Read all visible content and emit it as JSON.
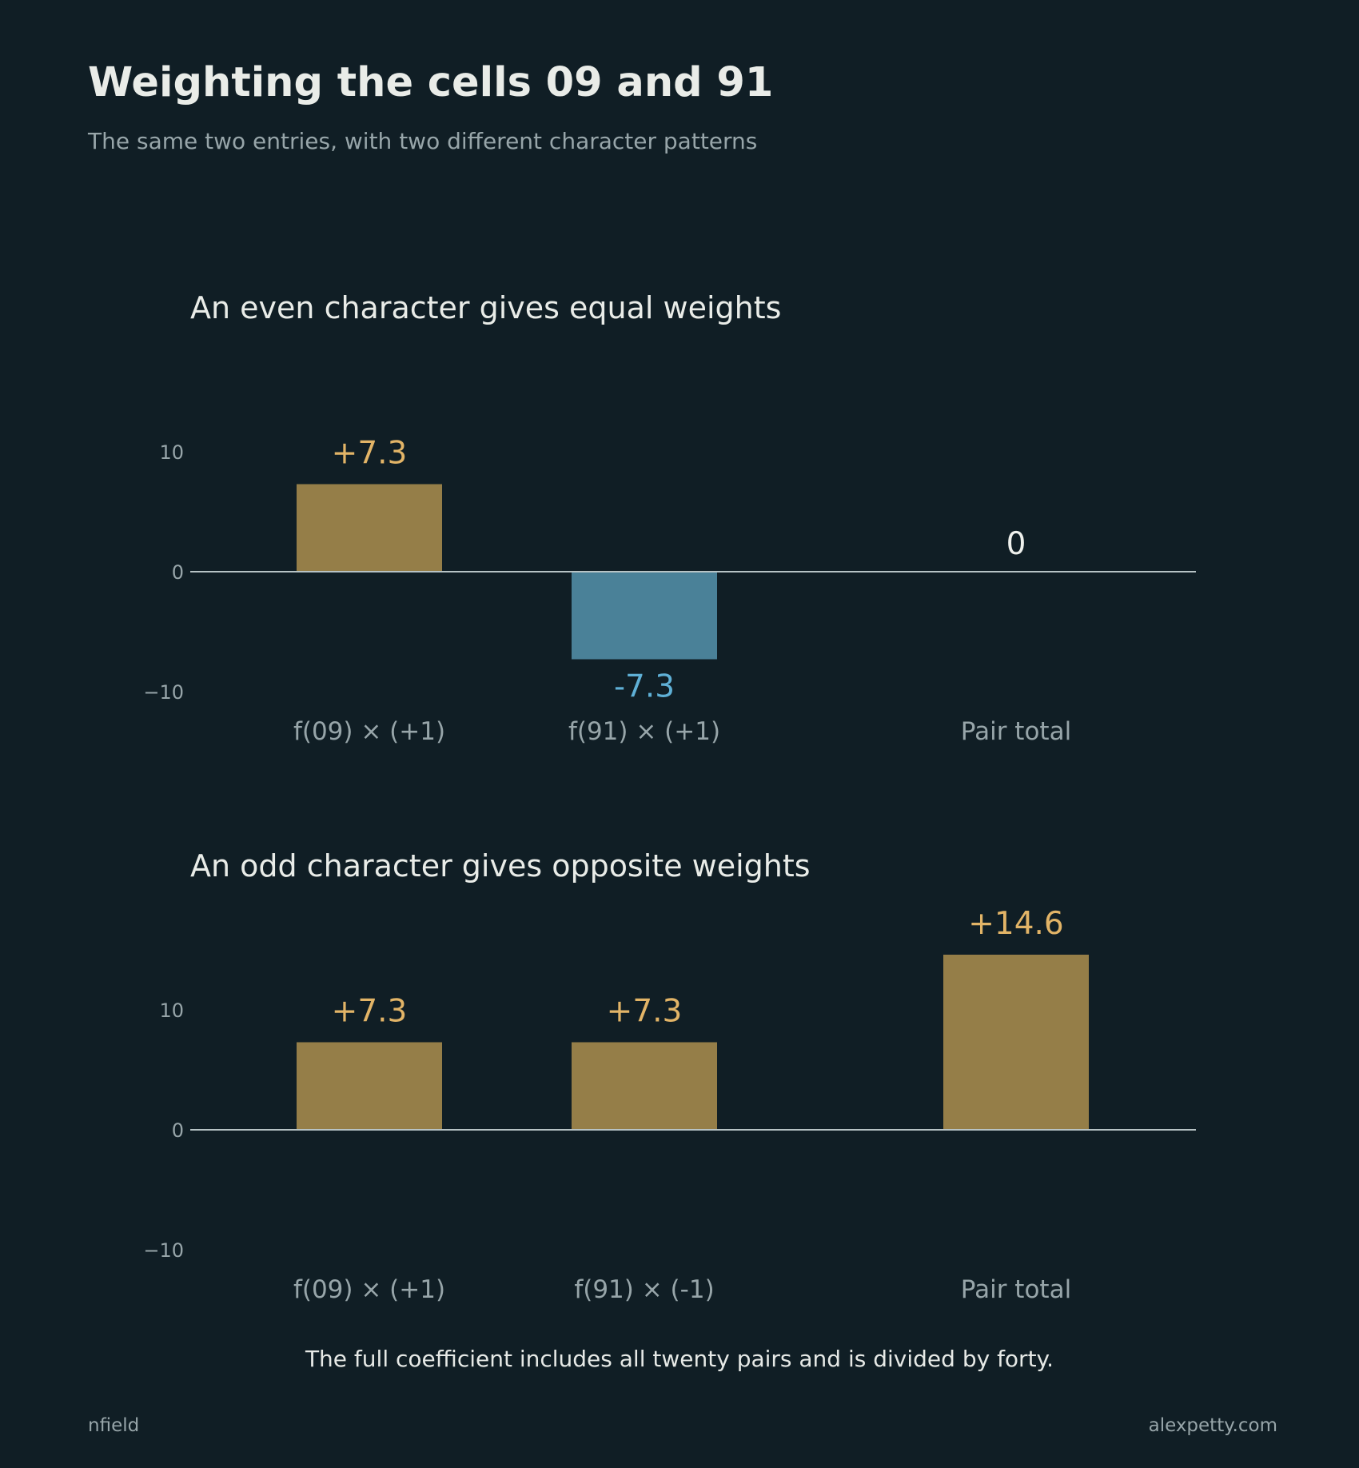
{
  "header": {
    "title": "Weighting the cells 09 and 91",
    "subtitle": "The same two entries, with two different character patterns"
  },
  "footer": {
    "note": "The full coefficient includes all twenty pairs and is divided by forty.",
    "credit_left": "nfield",
    "credit_right": "alexpetty.com"
  },
  "colors": {
    "background": "#101e25",
    "positive_bar": "#957e48",
    "negative_bar": "#4a8198",
    "positive_label": "#e2b467",
    "negative_label": "#5fb0d6",
    "zero_label": "#eef0ec",
    "category_label": "#97a5a9",
    "axis": "#b7c3c5"
  },
  "chart_data": [
    {
      "type": "bar",
      "title": "An even character gives equal weights",
      "categories": [
        "f(09) × (+1)",
        "f(91) × (+1)",
        "Pair total"
      ],
      "values": [
        7.3,
        -7.3,
        0
      ],
      "value_labels": [
        "+7.3",
        "-7.3",
        "0"
      ],
      "yticks": [
        10,
        0,
        -10
      ],
      "ytick_labels": [
        "10",
        "0",
        "−10"
      ],
      "ylim": [
        -10,
        10
      ],
      "grid": false,
      "legend": "none"
    },
    {
      "type": "bar",
      "title": "An odd character gives opposite weights",
      "categories": [
        "f(09) × (+1)",
        "f(91) × (-1)",
        "Pair total"
      ],
      "values": [
        7.3,
        7.3,
        14.6
      ],
      "value_labels": [
        "+7.3",
        "+7.3",
        "+14.6"
      ],
      "yticks": [
        10,
        0,
        -10
      ],
      "ytick_labels": [
        "10",
        "0",
        "−10"
      ],
      "ylim": [
        -10,
        10
      ],
      "grid": false,
      "legend": "none"
    }
  ]
}
